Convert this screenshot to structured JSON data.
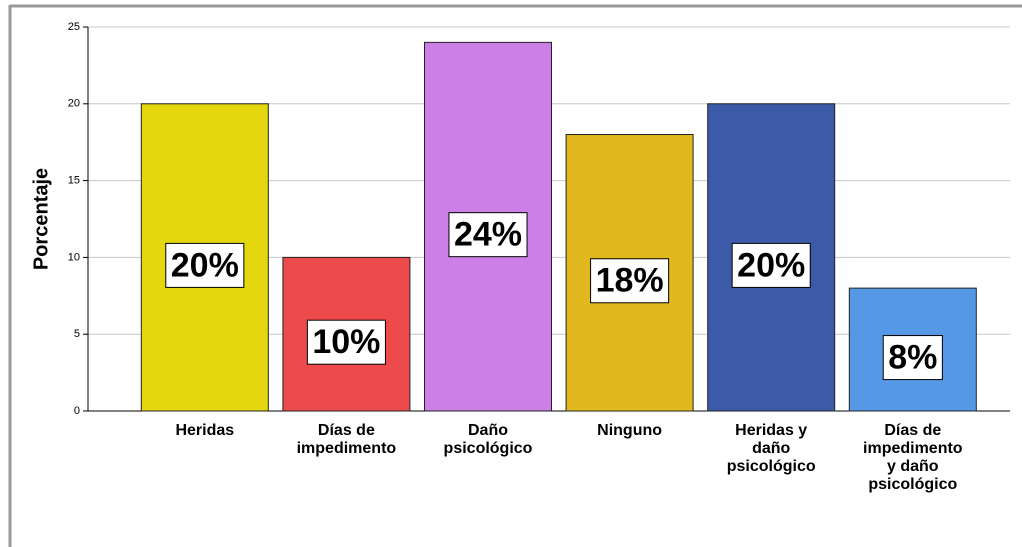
{
  "chart_data": {
    "type": "bar",
    "y_label": "Porcentaje",
    "categories": [
      "Heridas",
      "Días de impedimento",
      "Daño psicológico",
      "Ninguno",
      "Heridas y daño psicológico",
      "Días de impedimento y daño psicológico"
    ],
    "values": [
      20,
      10,
      24,
      18,
      20,
      8
    ],
    "value_labels": [
      "20%",
      "10%",
      "24%",
      "18%",
      "20%",
      "8%"
    ],
    "colors": [
      "#e4d70d",
      "#ec4a4b",
      "#cc80e6",
      "#e1b91f",
      "#3d5aa8",
      "#5599e6"
    ],
    "ylim": [
      0,
      25
    ],
    "yticks": [
      0,
      5,
      10,
      15,
      20,
      25
    ],
    "grid": true
  }
}
